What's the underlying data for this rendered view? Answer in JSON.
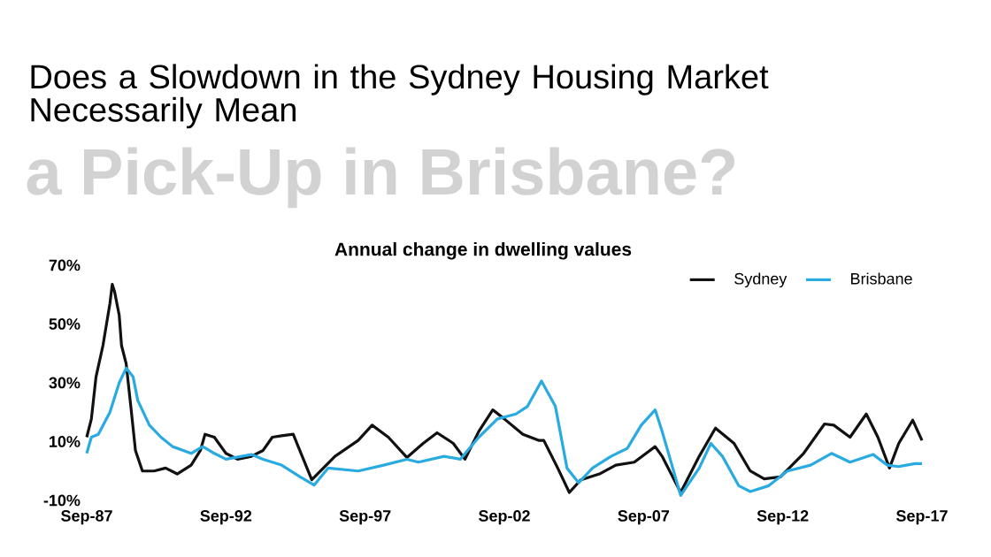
{
  "chart_data": {
    "type": "line",
    "title": "Does a Slowdown in the Sydney Housing Market Necessarily Mean",
    "subtitle": "a Pick-Up in Brisbane?",
    "annotations": [
      "Annual change in dwelling values"
    ],
    "xlim": [
      "1987-09",
      "2017-09"
    ],
    "ylim": [
      -10,
      70
    ],
    "xticks": [
      {
        "value": "1987-09",
        "label": "Sep-87"
      },
      {
        "value": "1992-09",
        "label": "Sep-92"
      },
      {
        "value": "1997-09",
        "label": "Sep-97"
      },
      {
        "value": "2002-09",
        "label": "Sep-02"
      },
      {
        "value": "2007-09",
        "label": "Sep-07"
      },
      {
        "value": "2012-09",
        "label": "Sep-12"
      },
      {
        "value": "2017-09",
        "label": "Sep-17"
      }
    ],
    "yticks": [
      {
        "value": -10,
        "label": "-10%"
      },
      {
        "value": 10,
        "label": "10%"
      },
      {
        "value": 30,
        "label": "30%"
      },
      {
        "value": 50,
        "label": "50%"
      },
      {
        "value": 70,
        "label": "70%"
      }
    ],
    "grid": false,
    "legend": "top right",
    "marker": "none",
    "line_style": "solid",
    "series": [
      {
        "name": "Sydney",
        "color": "#111111",
        "x": [
          "1987-09",
          "1987-11",
          "1988-01",
          "1988-04",
          "1988-07",
          "1988-08",
          "1988-09",
          "1988-11",
          "1988-12",
          "1989-02",
          "1989-04",
          "1989-06",
          "1989-09",
          "1990-02",
          "1990-07",
          "1990-12",
          "1991-06",
          "1991-10",
          "1991-12",
          "1992-04",
          "1992-09",
          "1993-02",
          "1993-08",
          "1994-01",
          "1994-05",
          "1994-09",
          "1995-02",
          "1995-10",
          "1996-08",
          "1997-06",
          "1997-12",
          "1998-07",
          "1999-03",
          "1999-10",
          "2000-04",
          "2000-11",
          "2001-04",
          "2001-10",
          "2002-04",
          "2002-09",
          "2003-05",
          "2003-12",
          "2004-02",
          "2004-08",
          "2005-01",
          "2005-06",
          "2006-02",
          "2006-09",
          "2007-05",
          "2008-02",
          "2008-05",
          "2009-01",
          "2009-09",
          "2010-04",
          "2010-12",
          "2011-07",
          "2012-01",
          "2012-08",
          "2013-06",
          "2014-03",
          "2014-07",
          "2015-02",
          "2015-09",
          "2016-02",
          "2016-07",
          "2016-11",
          "2017-05",
          "2017-09"
        ],
        "values": [
          11.5,
          17.7,
          32,
          42.7,
          57,
          63.5,
          61,
          53,
          42.7,
          36.5,
          22,
          7,
          0,
          0,
          1,
          -1,
          2,
          7,
          12.5,
          11.5,
          6,
          4,
          5,
          7,
          11.5,
          12,
          12.5,
          -3,
          5,
          10.4,
          15.6,
          11.5,
          4.6,
          9.4,
          13,
          9.4,
          4,
          13.5,
          20.8,
          17.7,
          12.5,
          10.4,
          10.4,
          1,
          -7.3,
          -3,
          -1,
          2,
          3,
          8.3,
          5,
          -7.3,
          5,
          14.6,
          9.4,
          0,
          -2.7,
          -2,
          6,
          16,
          15.6,
          11.5,
          19.4,
          11.5,
          1,
          9.4,
          17.3,
          10.4
        ]
      },
      {
        "name": "Brisbane",
        "color": "#29abe2",
        "x": [
          "1987-09",
          "1987-11",
          "1988-02",
          "1988-07",
          "1988-11",
          "1989-02",
          "1989-05",
          "1989-07",
          "1989-12",
          "1990-05",
          "1990-10",
          "1991-06",
          "1991-11",
          "1992-04",
          "1992-09",
          "1993-08",
          "1994-01",
          "1994-09",
          "1995-05",
          "1995-11",
          "1996-05",
          "1997-06",
          "1998-05",
          "1999-03",
          "1999-08",
          "2000-07",
          "2001-02",
          "2001-10",
          "2002-06",
          "2003-02",
          "2003-07",
          "2004-01",
          "2004-07",
          "2004-12",
          "2005-05",
          "2005-11",
          "2006-07",
          "2007-02",
          "2007-08",
          "2008-02",
          "2008-05",
          "2009-01",
          "2009-09",
          "2010-02",
          "2010-07",
          "2011-02",
          "2011-07",
          "2012-03",
          "2012-11",
          "2013-09",
          "2014-06",
          "2015-02",
          "2015-12",
          "2016-06",
          "2016-11",
          "2017-06",
          "2017-09"
        ],
        "values": [
          6,
          11.5,
          12.5,
          20,
          30,
          35,
          32,
          24,
          15.6,
          11.5,
          8.3,
          6,
          8.3,
          6,
          4,
          5.6,
          4,
          2,
          -2,
          -4.8,
          1,
          0,
          2,
          4,
          3,
          5,
          4,
          11.5,
          17.7,
          19.4,
          22,
          30.6,
          22,
          1,
          -4,
          1,
          5,
          7.7,
          15.6,
          20.8,
          13.5,
          -8.3,
          1,
          9.4,
          5,
          -5,
          -7,
          -5,
          0,
          2,
          6,
          3,
          5.6,
          2,
          1.5,
          2.5,
          2.5
        ]
      }
    ]
  }
}
